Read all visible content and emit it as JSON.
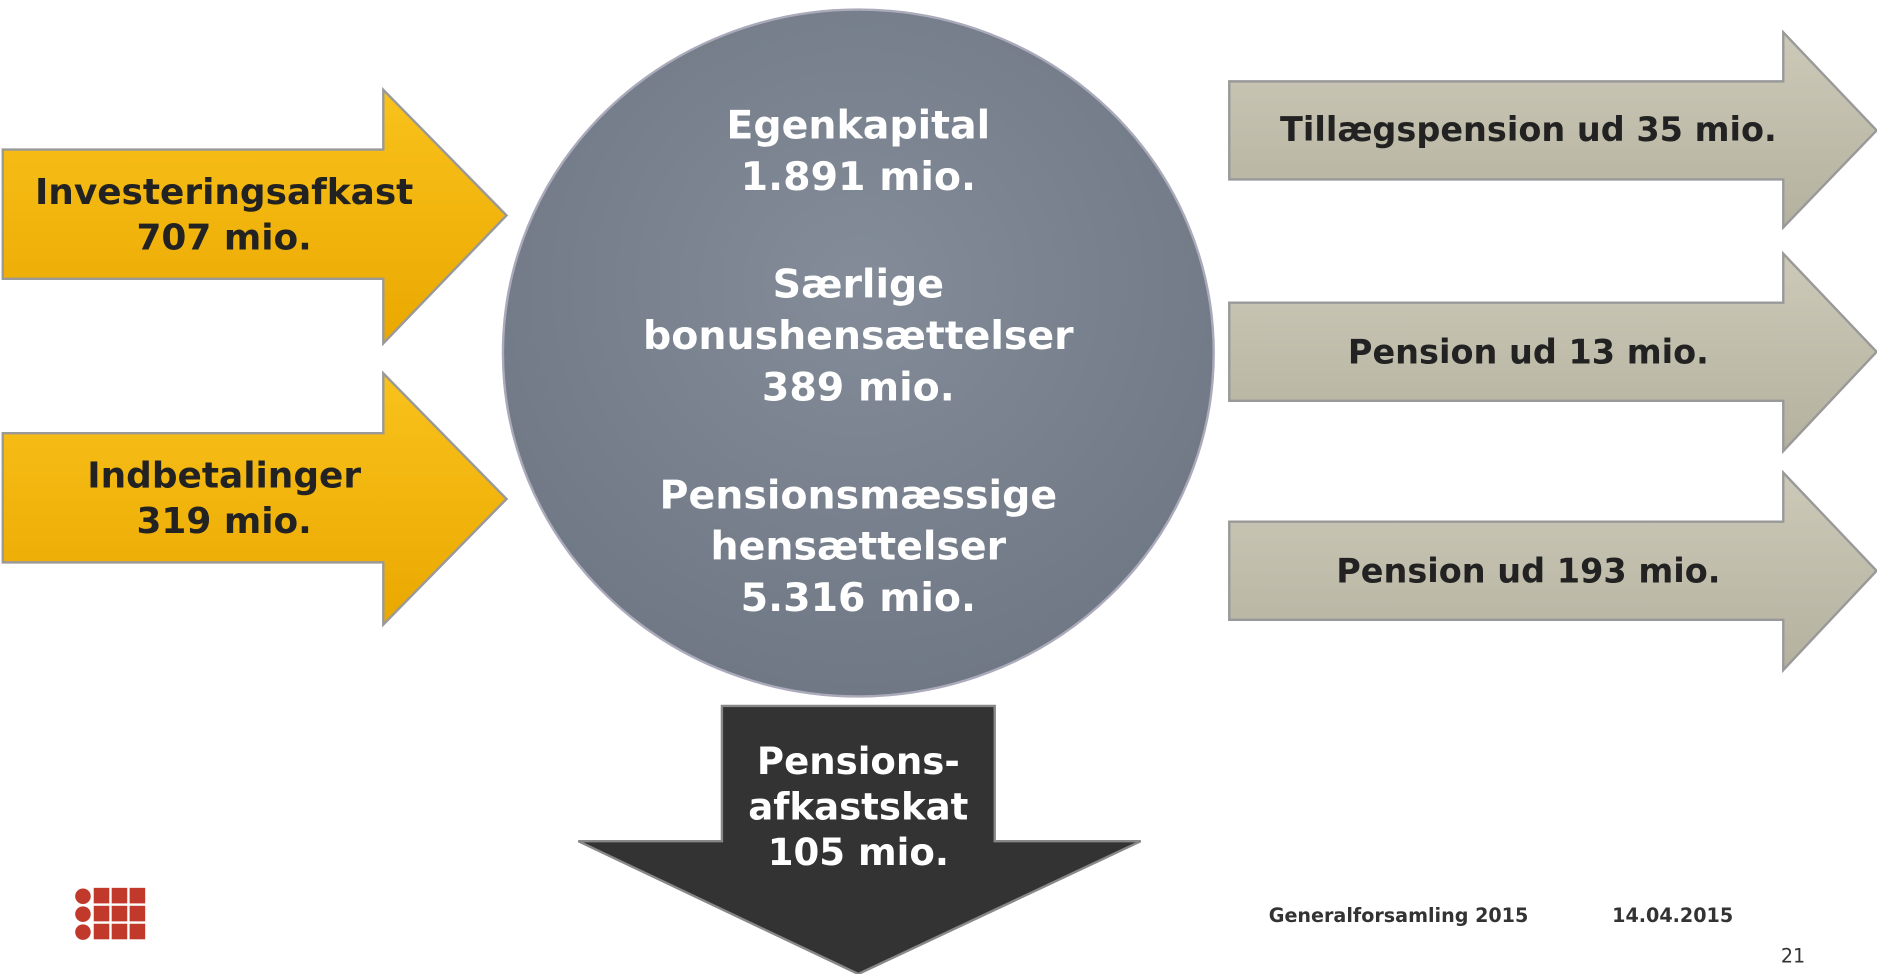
{
  "inflows": [
    {
      "lines": [
        "Investeringsafkast",
        "707 mio."
      ]
    },
    {
      "lines": [
        "Indbetalinger",
        "319 mio."
      ]
    }
  ],
  "center": {
    "lines": [
      "Egenkapital",
      "1.891 mio.",
      "Særlige",
      "bonushensættelser",
      "389 mio.",
      "Pensionsmæssige",
      "hensættelser",
      "5.316 mio."
    ]
  },
  "outflows": [
    {
      "label": "Tillægspension ud 35 mio."
    },
    {
      "label": "Pension ud 13 mio."
    },
    {
      "label": "Pension ud 193 mio."
    }
  ],
  "tax": {
    "lines": [
      "Pensions-",
      "afkastskat",
      "105 mio."
    ]
  },
  "footer": {
    "event": "Generalforsamling 2015",
    "date": "14.04.2015",
    "page": "21"
  }
}
